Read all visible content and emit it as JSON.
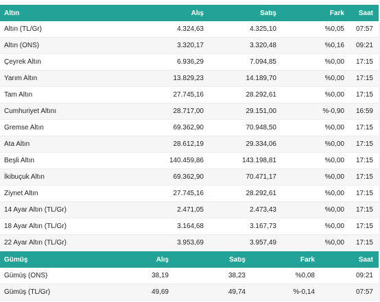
{
  "gold": {
    "headers": [
      "Altın",
      "Alış",
      "Satış",
      "Fark",
      "Saat"
    ],
    "rows": [
      [
        "Altın (TL/Gr)",
        "4.324,63",
        "4.325,10",
        "%0,05",
        "07:57"
      ],
      [
        "Altın (ONS)",
        "3.320,17",
        "3.320,48",
        "%0,16",
        "09:21"
      ],
      [
        "Çeyrek Altın",
        "6.936,29",
        "7.094,85",
        "%0,00",
        "17:15"
      ],
      [
        "Yarım Altın",
        "13.829,23",
        "14.189,70",
        "%0,00",
        "17:15"
      ],
      [
        "Tam Altın",
        "27.745,16",
        "28.292,61",
        "%0,00",
        "17:15"
      ],
      [
        "Cumhuriyet Altını",
        "28.717,00",
        "29.151,00",
        "%-0,90",
        "16:59"
      ],
      [
        "Gremse Altın",
        "69.362,90",
        "70.948,50",
        "%0,00",
        "17:15"
      ],
      [
        "Ata Altın",
        "28.612,19",
        "29.334,06",
        "%0,00",
        "17:15"
      ],
      [
        "Beşli Altın",
        "140.459,86",
        "143.198,81",
        "%0,00",
        "17:15"
      ],
      [
        "İkibuçuk Altın",
        "69.362,90",
        "70.471,17",
        "%0,00",
        "17:15"
      ],
      [
        "Ziynet Altın",
        "27.745,16",
        "28.292,61",
        "%0,00",
        "17:15"
      ],
      [
        "14 Ayar Altın (TL/Gr)",
        "2.471,05",
        "2.473,43",
        "%0,00",
        "17:15"
      ],
      [
        "18 Ayar Altın (TL/Gr)",
        "3.164,68",
        "3.167,73",
        "%0,00",
        "17:15"
      ],
      [
        "22 Ayar Altın (TL/Gr)",
        "3.953,69",
        "3.957,49",
        "%0,00",
        "17:15"
      ]
    ]
  },
  "silver": {
    "headers": [
      "Gümüş",
      "Alış",
      "Satış",
      "Fark",
      "Saat"
    ],
    "rows": [
      [
        "Gümüş (ONS)",
        "38,19",
        "38,23",
        "%0,08",
        "09:21"
      ],
      [
        "Gümüş (TL/Gr)",
        "49,69",
        "49,74",
        "%-0,14",
        "07:57"
      ]
    ]
  }
}
